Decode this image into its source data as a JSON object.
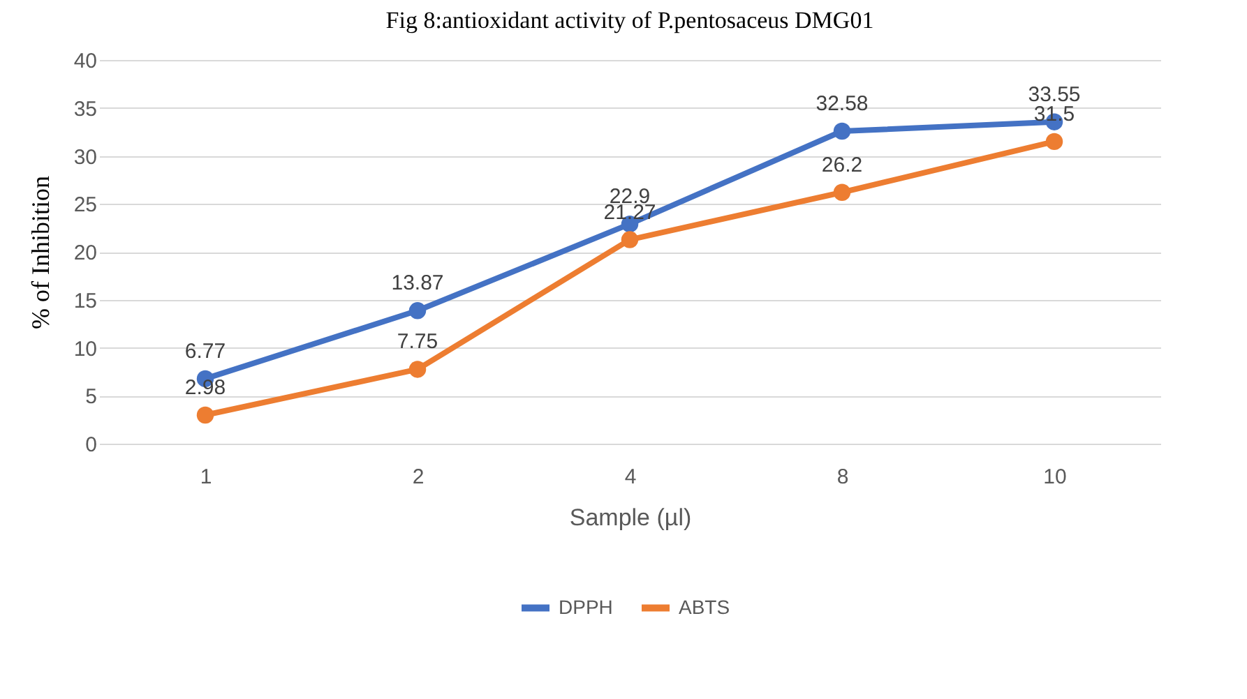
{
  "chart_data": {
    "type": "line",
    "title": "Fig 8:antioxidant activity of P.pentosaceus DMG01",
    "xlabel": "Sample (µl)",
    "ylabel": "% of Inhibition",
    "categories": [
      "1",
      "2",
      "4",
      "8",
      "10"
    ],
    "series": [
      {
        "name": "DPPH",
        "color": "#4472c4",
        "values": [
          6.77,
          13.87,
          22.9,
          32.58,
          33.55
        ]
      },
      {
        "name": "ABTS",
        "color": "#ed7d31",
        "values": [
          2.98,
          7.75,
          21.27,
          26.2,
          31.5
        ]
      }
    ],
    "ylim": [
      0,
      40
    ],
    "yticks": [
      0,
      5,
      10,
      15,
      20,
      25,
      30,
      35,
      40
    ],
    "grid": "y",
    "legend": "bottom",
    "marker": "circle",
    "line_style": "solid",
    "data_labels": true
  }
}
